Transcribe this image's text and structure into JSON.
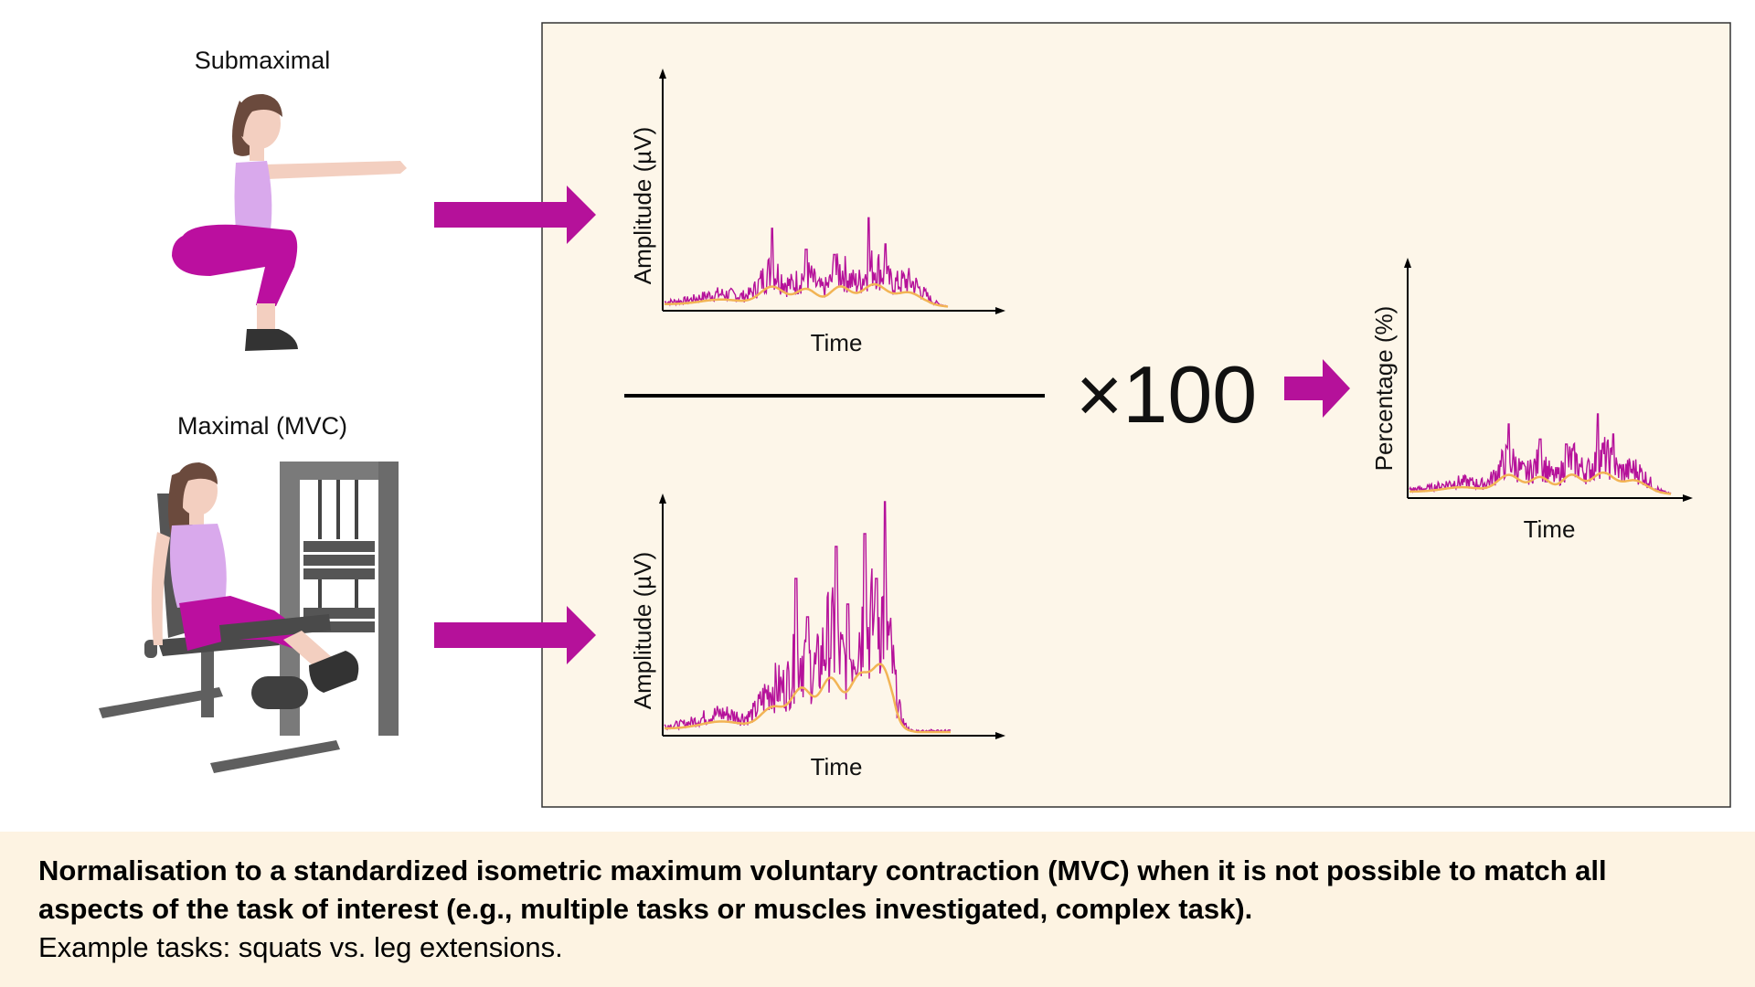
{
  "left": {
    "submaximal_label": "Submaximal",
    "maximal_label": "Maximal (MVC)"
  },
  "panel": {
    "top_plot": {
      "ylabel": "Amplitude (µV)",
      "xlabel": "Time"
    },
    "bottom_plot": {
      "ylabel": "Amplitude (µV)",
      "xlabel": "Time"
    },
    "result_plot": {
      "ylabel": "Percentage (%)",
      "xlabel": "Time"
    },
    "multiplier": "×100"
  },
  "caption": {
    "bold_text": "Normalisation to a standardized isometric maximum voluntary contraction (MVC) when it is not possible to match all aspects of the task of interest (e.g., multiple tasks or muscles investigated, complex task).",
    "regular_text": "Example tasks: squats vs. leg extensions."
  },
  "colors": {
    "signal": "#b5119a",
    "envelope": "#f2b455",
    "arrow": "#b5119a",
    "panel_bg": "#fdf6e9",
    "skin": "#f3cfc0",
    "hair": "#6b4a3d",
    "top": "#d9a9ec",
    "pants": "#bb0f9f",
    "machine": "#6f6f6f"
  }
}
